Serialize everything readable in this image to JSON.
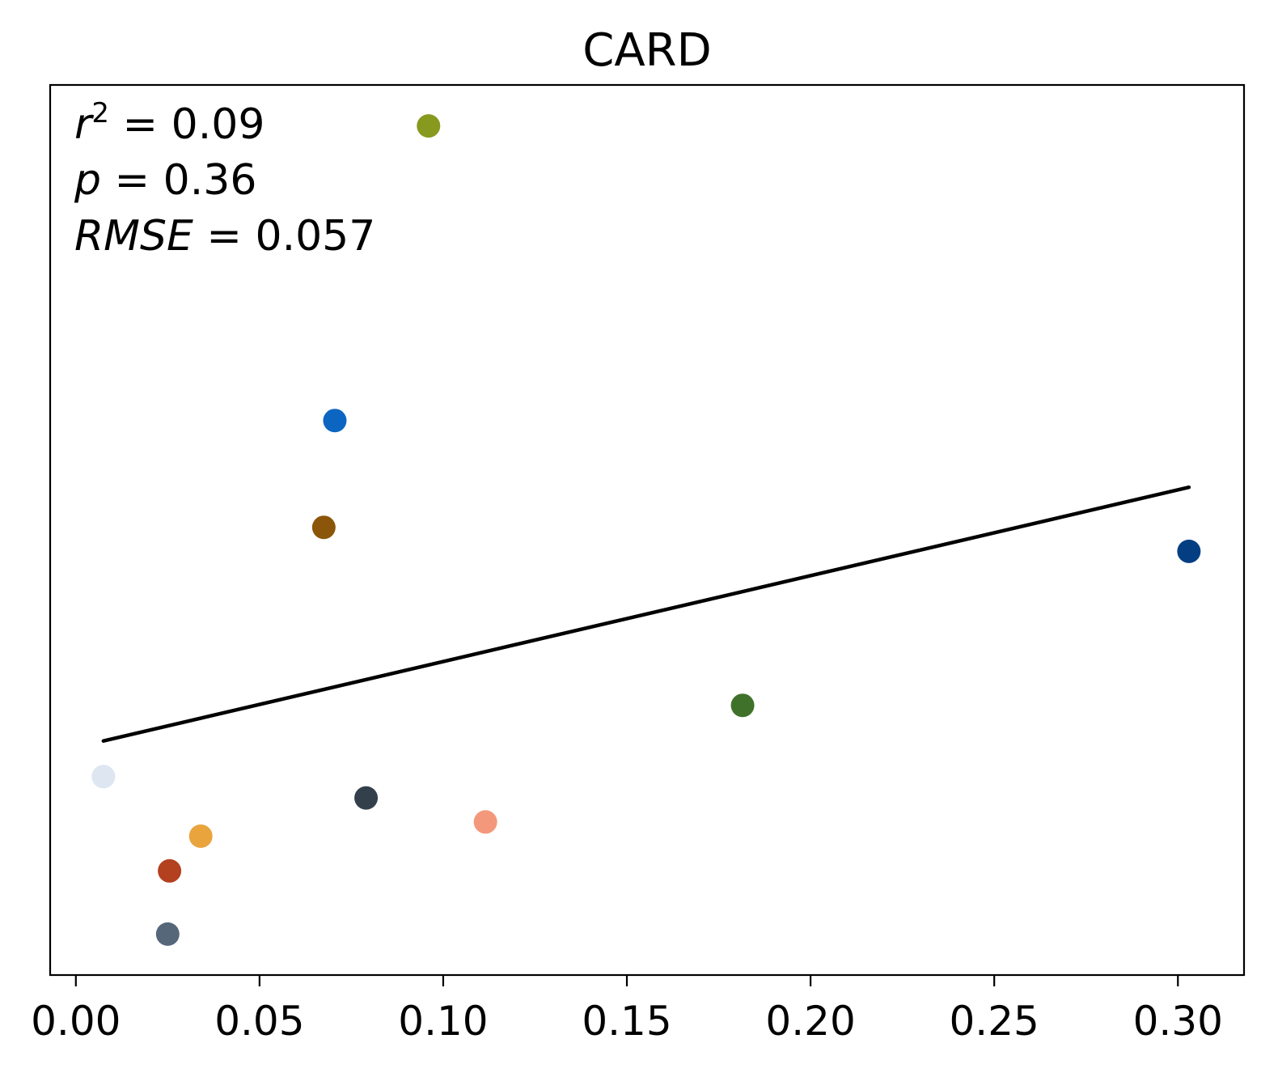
{
  "chart_data": {
    "type": "scatter",
    "title": "CARD",
    "xlabel": "",
    "ylabel": "",
    "xlim": [
      -0.007,
      0.318
    ],
    "ylim": [
      0.0,
      1.0
    ],
    "y_axis_visible": false,
    "grid": false,
    "x_ticks": [
      {
        "value": 0.0,
        "label": "0.00"
      },
      {
        "value": 0.05,
        "label": "0.05"
      },
      {
        "value": 0.1,
        "label": "0.10"
      },
      {
        "value": 0.15,
        "label": "0.15"
      },
      {
        "value": 0.2,
        "label": "0.20"
      },
      {
        "value": 0.25,
        "label": "0.25"
      },
      {
        "value": 0.3,
        "label": "0.30"
      }
    ],
    "points": [
      {
        "x": 0.096,
        "y": 0.954,
        "color": "#88991f"
      },
      {
        "x": 0.0705,
        "y": 0.623,
        "color": "#0d65c2"
      },
      {
        "x": 0.0675,
        "y": 0.503,
        "color": "#8b5609"
      },
      {
        "x": 0.303,
        "y": 0.476,
        "color": "#033e83"
      },
      {
        "x": 0.1815,
        "y": 0.303,
        "color": "#40712a"
      },
      {
        "x": 0.0075,
        "y": 0.223,
        "color": "#dde6f1"
      },
      {
        "x": 0.079,
        "y": 0.199,
        "color": "#333f4a"
      },
      {
        "x": 0.1115,
        "y": 0.172,
        "color": "#f4987c"
      },
      {
        "x": 0.034,
        "y": 0.156,
        "color": "#e9a43e"
      },
      {
        "x": 0.0255,
        "y": 0.117,
        "color": "#b3401e"
      },
      {
        "x": 0.025,
        "y": 0.046,
        "color": "#56677a"
      }
    ],
    "fit_line": {
      "x": [
        0.0075,
        0.303
      ],
      "y": [
        0.263,
        0.548
      ],
      "color": "#000000"
    },
    "annotations": {
      "r2": {
        "var": "r",
        "sup": "2",
        "text": " = 0.09"
      },
      "p": {
        "var": "p",
        "text": " = 0.36"
      },
      "rmse": {
        "var": "RMSE",
        "text": " = 0.057"
      }
    }
  }
}
